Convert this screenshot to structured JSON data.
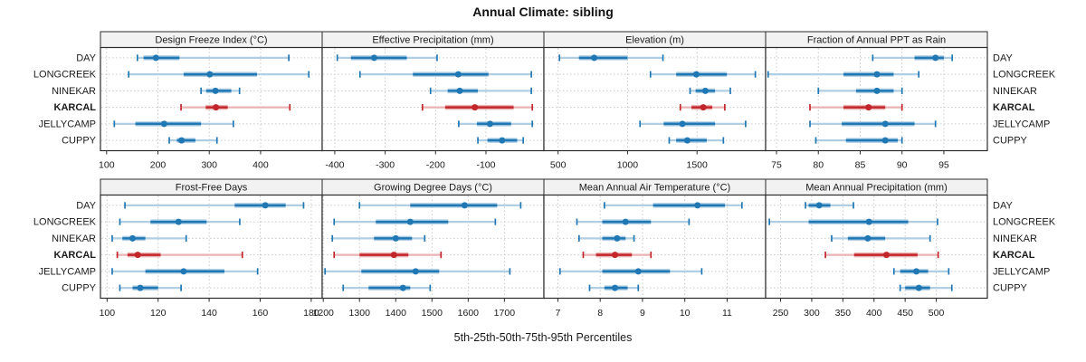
{
  "title": "Annual Climate: sibling",
  "xlabel": "5th-25th-50th-75th-95th Percentiles",
  "chart_data": {
    "type": "percentile-interval-dotplot",
    "percentiles": [
      5,
      25,
      50,
      75,
      95
    ],
    "title": "Annual Climate: sibling",
    "xlabel": "5th-25th-50th-75th-95th Percentiles",
    "sites": [
      "DAY",
      "LONGCREEK",
      "NINEKAR",
      "KARCAL",
      "JELLYCAMP",
      "CUPPY"
    ],
    "highlight_site": "KARCAL",
    "layout": {
      "rows": 2,
      "cols": 4,
      "grid": "dotted",
      "site_labels": "both-sides"
    },
    "colors": {
      "normal": "#1F77B4",
      "normal_light": "#B1CFE4",
      "highlight": "#C3262A",
      "highlight_light": "#EAB3B4",
      "gridline": "#C9C9C9",
      "border": "#2B2B2B",
      "strip_bg": "#F2F2F2",
      "text": "#1A1A1A"
    },
    "panels": [
      {
        "title": "Design Freeze Index (°C)",
        "row": 0,
        "col": 0,
        "xlim": [
          88,
          520
        ],
        "ticks": [
          100,
          200,
          300,
          400
        ],
        "values": [
          [
            160,
            172,
            196,
            242,
            455
          ],
          [
            143,
            250,
            301,
            393,
            494
          ],
          [
            284,
            294,
            312,
            343,
            359
          ],
          [
            245,
            293,
            313,
            336,
            457
          ],
          [
            115,
            156,
            212,
            284,
            347
          ],
          [
            222,
            237,
            246,
            273,
            315
          ]
        ]
      },
      {
        "title": "Effective Precipitation (mm)",
        "row": 0,
        "col": 1,
        "xlim": [
          -425,
          15
        ],
        "ticks": [
          -400,
          -300,
          -200,
          -100
        ],
        "values": [
          [
            -395,
            -368,
            -322,
            -257,
            -197
          ],
          [
            -350,
            -245,
            -155,
            -95,
            -10
          ],
          [
            -210,
            -176,
            -152,
            -116,
            -10
          ],
          [
            -226,
            -181,
            -122,
            -45,
            -8
          ],
          [
            -154,
            -118,
            -92,
            -50,
            -8
          ],
          [
            -116,
            -97,
            -68,
            -38,
            -26
          ]
        ]
      },
      {
        "title": "Elevation (m)",
        "row": 0,
        "col": 2,
        "xlim": [
          398,
          1994
        ],
        "ticks": [
          500,
          1000,
          1500
        ],
        "values": [
          [
            510,
            650,
            760,
            1000,
            1255
          ],
          [
            1165,
            1350,
            1495,
            1715,
            1920
          ],
          [
            1450,
            1490,
            1560,
            1630,
            1740
          ],
          [
            1380,
            1460,
            1545,
            1610,
            1700
          ],
          [
            1090,
            1260,
            1395,
            1630,
            1850
          ],
          [
            1300,
            1350,
            1430,
            1570,
            1690
          ]
        ]
      },
      {
        "title": "Fraction of Annual PPT as Rain",
        "row": 0,
        "col": 3,
        "xlim": [
          73.7,
          100.2
        ],
        "ticks": [
          75,
          80,
          85,
          90,
          95
        ],
        "values": [
          [
            86.5,
            91.5,
            94,
            95,
            96
          ],
          [
            74,
            83,
            87,
            89,
            92
          ],
          [
            80,
            84.5,
            87,
            89,
            90
          ],
          [
            79,
            83,
            86,
            88,
            90
          ],
          [
            79,
            82.8,
            88,
            91.5,
            94
          ],
          [
            79.7,
            83.3,
            88,
            89.5,
            90
          ]
        ]
      },
      {
        "title": "Frost-Free Days",
        "row": 1,
        "col": 0,
        "xlim": [
          97.4,
          184.3
        ],
        "ticks": [
          100,
          120,
          140,
          160,
          180
        ],
        "values": [
          [
            107,
            150,
            162,
            170,
            177
          ],
          [
            105,
            117,
            128,
            139,
            152
          ],
          [
            102,
            106,
            110,
            115,
            131
          ],
          [
            104,
            108,
            112,
            121,
            153
          ],
          [
            102,
            115,
            130,
            146,
            159
          ],
          [
            105,
            110,
            113,
            120,
            129
          ]
        ]
      },
      {
        "title": "Growing Degree Days (°C)",
        "row": 1,
        "col": 1,
        "xlim": [
          1197,
          1809
        ],
        "ticks": [
          1200,
          1300,
          1400,
          1500,
          1600,
          1700
        ],
        "values": [
          [
            1300,
            1440,
            1590,
            1680,
            1745
          ],
          [
            1230,
            1345,
            1440,
            1545,
            1675
          ],
          [
            1225,
            1340,
            1400,
            1445,
            1480
          ],
          [
            1230,
            1300,
            1395,
            1435,
            1525
          ],
          [
            1205,
            1305,
            1455,
            1520,
            1715
          ],
          [
            1255,
            1325,
            1420,
            1440,
            1495
          ]
        ]
      },
      {
        "title": "Mean Annual Air Temperature (°C)",
        "row": 1,
        "col": 2,
        "xlim": [
          6.67,
          11.91
        ],
        "ticks": [
          7,
          8,
          9,
          10,
          11
        ],
        "values": [
          [
            8.1,
            9.25,
            10.3,
            10.95,
            11.35
          ],
          [
            7.45,
            8.05,
            8.6,
            9.2,
            10.1
          ],
          [
            7.5,
            8.05,
            8.4,
            8.6,
            8.8
          ],
          [
            7.6,
            7.9,
            8.35,
            8.75,
            9.2
          ],
          [
            7.05,
            8.05,
            8.9,
            9.65,
            10.4
          ],
          [
            7.75,
            8.1,
            8.35,
            8.65,
            8.9
          ]
        ]
      },
      {
        "title": "Mean Annual Precipitation (mm)",
        "row": 1,
        "col": 3,
        "xlim": [
          226,
          582
        ],
        "ticks": [
          250,
          300,
          350,
          400,
          450,
          500
        ],
        "values": [
          [
            290,
            295,
            312,
            330,
            367
          ],
          [
            232,
            295,
            392,
            455,
            502
          ],
          [
            332,
            358,
            390,
            418,
            490
          ],
          [
            322,
            368,
            420,
            470,
            503
          ],
          [
            432,
            442,
            468,
            487,
            520
          ],
          [
            442,
            450,
            472,
            490,
            525
          ]
        ]
      }
    ]
  }
}
